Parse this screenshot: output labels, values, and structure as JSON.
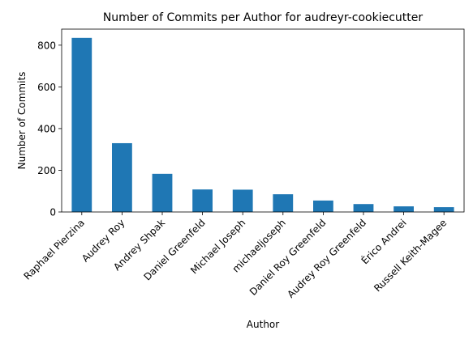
{
  "chart_data": {
    "type": "bar",
    "title": "Number of Commits per Author for audreyr-cookiecutter",
    "xlabel": "Author",
    "ylabel": "Number of Commits",
    "categories": [
      "Raphael Pierzina",
      "Audrey Roy",
      "Andrey Shpak",
      "Daniel Greenfeld",
      "Michael Joseph",
      "michaeljoseph",
      "Daniel Roy Greenfeld",
      "Audrey Roy Greenfeld",
      "Érico Andrei",
      "Russell Keith-Magee"
    ],
    "values": [
      835,
      330,
      183,
      108,
      107,
      85,
      55,
      38,
      27,
      23
    ],
    "ylim": [
      0,
      877
    ],
    "yticks": [
      0,
      200,
      400,
      600,
      800
    ],
    "bar_color": "#1f77b4",
    "grid": false,
    "legend": "none"
  }
}
